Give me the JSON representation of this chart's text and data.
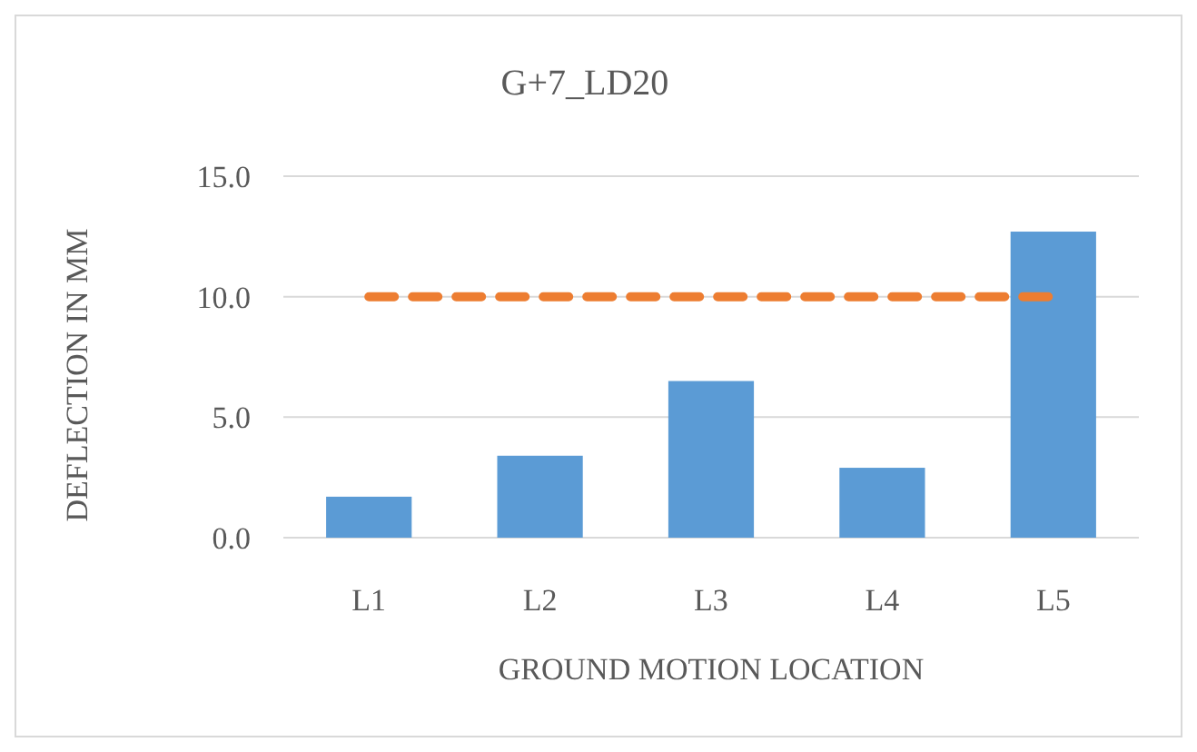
{
  "chart_data": {
    "type": "bar",
    "title": "G+7_LD20",
    "xlabel": "GROUND MOTION LOCATION",
    "ylabel": "DEFLECTION IN MM",
    "categories": [
      "L1",
      "L2",
      "L3",
      "L4",
      "L5"
    ],
    "series": [
      {
        "color": "#5b9bd5",
        "values": [
          1.7,
          3.4,
          6.5,
          2.9,
          12.7
        ]
      },
      {
        "type": "line",
        "color": "#ed7d31",
        "line_style": "dashed",
        "values": [
          10,
          10,
          10,
          10,
          10
        ]
      }
    ],
    "ylim": [
      0,
      15
    ],
    "yticks": [
      {
        "value": 0,
        "label": "0.0"
      },
      {
        "value": 5,
        "label": "5.0"
      },
      {
        "value": 10,
        "label": "10.0"
      },
      {
        "value": 15,
        "label": "15.0"
      }
    ],
    "grid": "y"
  }
}
